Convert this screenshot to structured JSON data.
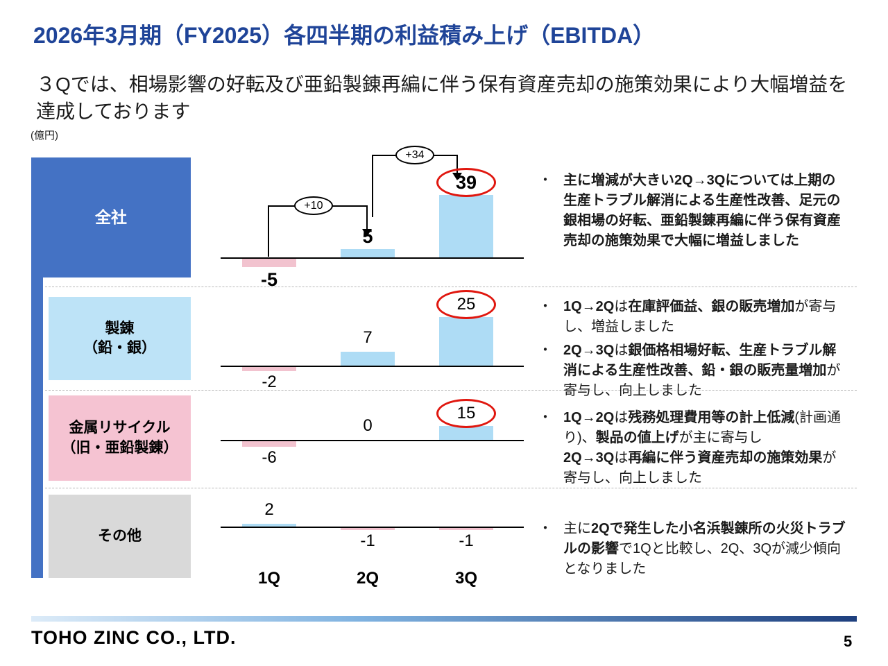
{
  "slide": {
    "title": "2026年3月期（FY2025）各四半期の利益積み上げ（EBITDA）",
    "subtitle": "３Qでは、相場影響の好転及び亜鉛製錬再編に伴う保有資産売却の施策効果により大幅増益を達成しております",
    "unit_label": "(億円)",
    "footer_logo": "TOHO ZINC CO., LTD.",
    "page_number": "5"
  },
  "colors": {
    "accent_blue": "#4472C4",
    "title_blue": "#1f4498",
    "bar_blue": "#AEDCF5",
    "bar_pink": "#F2C3CF",
    "box_light_blue": "#BDE3F7",
    "box_pink": "#F5C3D2",
    "box_gray": "#D9D9D9",
    "highlight_red": "#e0170f"
  },
  "chart_data": {
    "type": "bar",
    "unit": "億円",
    "categories": [
      "1Q",
      "2Q",
      "3Q"
    ],
    "series": [
      {
        "name": "全社",
        "values": [
          -5,
          5,
          39
        ],
        "highlight_index": 2,
        "deltas": [
          {
            "from": "1Q",
            "to": "2Q",
            "label": "+10"
          },
          {
            "from": "2Q",
            "to": "3Q",
            "label": "+34"
          }
        ]
      },
      {
        "name": "製錬（鉛・銀）",
        "values": [
          -2,
          7,
          25
        ],
        "highlight_index": 2
      },
      {
        "name": "金属リサイクル（旧・亜鉛製錬）",
        "values": [
          -6,
          0,
          15
        ],
        "highlight_index": 2
      },
      {
        "name": "その他",
        "values": [
          2,
          -1,
          -1
        ],
        "highlight_index": null
      }
    ]
  },
  "rows": [
    {
      "label_lines": [
        "全社"
      ]
    },
    {
      "label_lines": [
        "製錬",
        "（鉛・銀）"
      ]
    },
    {
      "label_lines": [
        "金属リサイクル",
        "（旧・亜鉛製錬）"
      ]
    },
    {
      "label_lines": [
        "その他"
      ]
    }
  ],
  "notes_meta": {
    "bullet": "・"
  },
  "notes": [
    {
      "items": [
        {
          "segments": [
            {
              "t": "主に増減が大きい2Q→3Qについては上期の生産トラブル解消による生産性改善、足元の銀相場の好転、亜鉛製錬再編に伴う保有資産売却の施策効果で大幅に増益しました",
              "b": true
            }
          ]
        }
      ]
    },
    {
      "items": [
        {
          "segments": [
            {
              "t": "1Q→2Q",
              "b": true
            },
            {
              "t": "は",
              "b": false
            },
            {
              "t": "在庫評価益、銀の販売増加",
              "b": true
            },
            {
              "t": "が寄与し、増益しました",
              "b": false
            }
          ]
        },
        {
          "segments": [
            {
              "t": "2Q→3Q",
              "b": true
            },
            {
              "t": "は",
              "b": false
            },
            {
              "t": "銀価格相場好転、生産トラブル解消による生産性改善、鉛・銀の販売量増加",
              "b": true
            },
            {
              "t": "が寄与し、向上しました",
              "b": false
            }
          ]
        }
      ]
    },
    {
      "items": [
        {
          "segments": [
            {
              "t": "1Q→2Q",
              "b": true
            },
            {
              "t": "は",
              "b": false
            },
            {
              "t": "残務処理費用等の計上低減",
              "b": true
            },
            {
              "t": "(計画通り)、",
              "b": false
            },
            {
              "t": "製品の値上げ",
              "b": true
            },
            {
              "t": "が主に寄与し",
              "b": false
            },
            {
              "br": true
            },
            {
              "t": "2Q→3Q",
              "b": true
            },
            {
              "t": "は",
              "b": false
            },
            {
              "t": "再編に伴う資産売却の施策効果",
              "b": true
            },
            {
              "t": "が寄与し、向上しました",
              "b": false
            }
          ]
        }
      ]
    },
    {
      "items": [
        {
          "segments": [
            {
              "t": "主に",
              "b": false
            },
            {
              "t": "2Qで発生した小名浜製錬所の火災トラブルの影響",
              "b": true
            },
            {
              "t": "で1Qと比較し、2Q、3Qが減少傾向となりました",
              "b": false
            }
          ]
        }
      ]
    }
  ]
}
